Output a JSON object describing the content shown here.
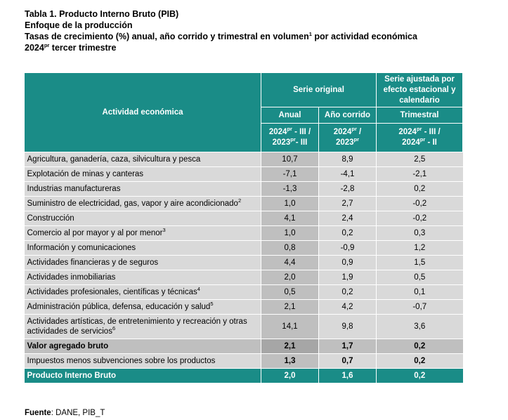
{
  "titles": {
    "line1": "Tabla 1. Producto Interno Bruto (PIB)",
    "line2": "Enfoque de la producción",
    "line3": "Tasas de crecimiento (%) anual, año corrido y trimestral en volumen",
    "line3_sup": "1",
    "line3_tail": " por actividad económica",
    "line4_pre": "2024",
    "line4_sup": "pr",
    "line4_tail": " tercer trimestre"
  },
  "header": {
    "actividad": "Actividad económica",
    "serie_original": "Serie original",
    "serie_ajustada": "Serie ajustada por efecto estacional y calendario",
    "anual": "Anual",
    "ano_corrido": "Año corrido",
    "trimestral": "Trimestral",
    "p_anual_a": "2024",
    "p_anual_a_sup": "pr",
    "p_anual_b": " - III /",
    "p_anual_c": "2023",
    "p_anual_c_sup": "pr",
    "p_anual_d": "- III",
    "p_corrido_a": "2024",
    "p_corrido_a_sup": "pr",
    "p_corrido_b": " /",
    "p_corrido_c": "2023",
    "p_corrido_c_sup": "pr",
    "p_trim_a": "2024",
    "p_trim_a_sup": "pr",
    "p_trim_b": " - III /",
    "p_trim_c": "2024",
    "p_trim_c_sup": "pr",
    "p_trim_d": " - II"
  },
  "rows": [
    {
      "name": "Agricultura, ganadería, caza, silvicultura y pesca",
      "sup": "",
      "anual": "10,7",
      "corrido": "8,9",
      "trimestral": "2,5"
    },
    {
      "name": "Explotación de minas y canteras",
      "sup": "",
      "anual": "-7,1",
      "corrido": "-4,1",
      "trimestral": "-2,1"
    },
    {
      "name": "Industrias manufactureras",
      "sup": "",
      "anual": "-1,3",
      "corrido": "-2,8",
      "trimestral": "0,2"
    },
    {
      "name": "Suministro de electricidad, gas, vapor y aire acondicionado",
      "sup": "2",
      "anual": "1,0",
      "corrido": "2,7",
      "trimestral": "-0,2"
    },
    {
      "name": "Construcción",
      "sup": "",
      "anual": "4,1",
      "corrido": "2,4",
      "trimestral": "-0,2"
    },
    {
      "name": "Comercio al por mayor y al por menor",
      "sup": "3",
      "anual": "1,0",
      "corrido": "0,2",
      "trimestral": "0,3"
    },
    {
      "name": "Información y comunicaciones",
      "sup": "",
      "anual": "0,8",
      "corrido": "-0,9",
      "trimestral": "1,2"
    },
    {
      "name": "Actividades financieras y de seguros",
      "sup": "",
      "anual": "4,4",
      "corrido": "0,9",
      "trimestral": "1,5"
    },
    {
      "name": "Actividades inmobiliarias",
      "sup": "",
      "anual": "2,0",
      "corrido": "1,9",
      "trimestral": "0,5"
    },
    {
      "name": "Actividades profesionales, científicas y técnicas",
      "sup": "4",
      "anual": "0,5",
      "corrido": "0,2",
      "trimestral": "0,1"
    },
    {
      "name": "Administración pública, defensa, educación y salud",
      "sup": "5",
      "anual": "2,1",
      "corrido": "4,2",
      "trimestral": "-0,7"
    },
    {
      "name": "Actividades artísticas, de entretenimiento y recreación y otras actividades de servicios",
      "sup": "6",
      "anual": "14,1",
      "corrido": "9,8",
      "trimestral": "3,6"
    }
  ],
  "valor_agregado": {
    "name": "Valor agregado bruto",
    "anual": "2,1",
    "corrido": "1,7",
    "trimestral": "0,2"
  },
  "impuestos": {
    "name": "Impuestos menos subvenciones sobre los productos",
    "anual": "1,3",
    "corrido": "0,7",
    "trimestral": "0,2"
  },
  "pib": {
    "name": "Producto Interno Bruto",
    "anual": "2,0",
    "corrido": "1,6",
    "trimestral": "0,2"
  },
  "source": {
    "label": "Fuente",
    "text": ": DANE, PIB_T"
  },
  "colors": {
    "header_teal": "#1a8c87",
    "row_gray": "#d9d9d9",
    "col_gray": "#bfbfbf"
  }
}
